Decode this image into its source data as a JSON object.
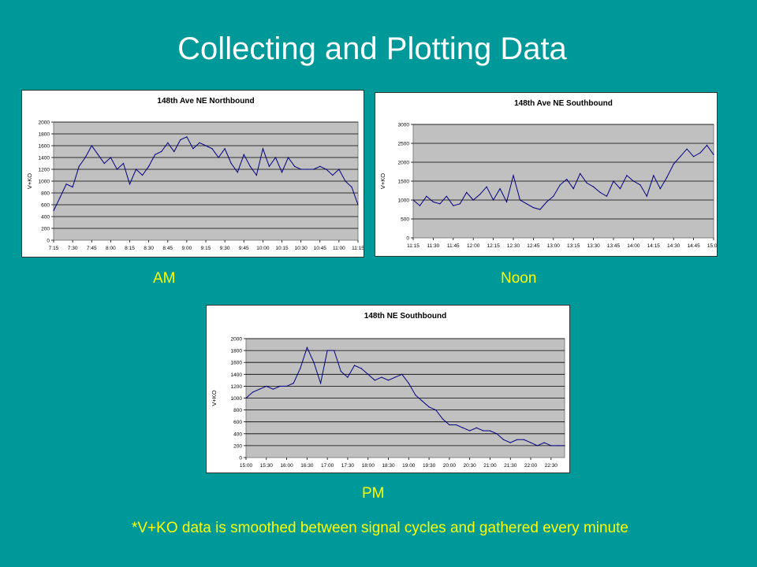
{
  "slide": {
    "title": "Collecting and Plotting Data",
    "captions": {
      "am": "AM",
      "noon": "Noon",
      "pm": "PM"
    },
    "footnote": "*V+KO data is smoothed between signal cycles and gathered every minute"
  },
  "colors": {
    "background": "#009999",
    "caption": "#ffff00",
    "title": "#ffffff",
    "plot_area": "#c0c0c0",
    "line": "#000080"
  },
  "chart_data": [
    {
      "id": "am",
      "type": "line",
      "title": "148th Ave NE Northbound",
      "ylabel": "V+KO",
      "xlabel": "",
      "grid": true,
      "ylim": [
        0,
        2000
      ],
      "yticks": [
        "0",
        "200",
        "400",
        "600",
        "800",
        "1000",
        "1200",
        "1400",
        "1600",
        "1800",
        "2000"
      ],
      "xticks": [
        "7:15",
        "7:30",
        "7:45",
        "8:00",
        "8:15",
        "8:30",
        "8:45",
        "9:00",
        "9:15",
        "9:30",
        "9:45",
        "10:00",
        "10:15",
        "10:30",
        "10:45",
        "11:00",
        "11:15"
      ],
      "x": [
        "7:15",
        "7:20",
        "7:25",
        "7:30",
        "7:35",
        "7:40",
        "7:45",
        "7:50",
        "7:55",
        "8:00",
        "8:05",
        "8:10",
        "8:15",
        "8:20",
        "8:25",
        "8:30",
        "8:35",
        "8:40",
        "8:45",
        "8:50",
        "8:55",
        "9:00",
        "9:05",
        "9:10",
        "9:15",
        "9:20",
        "9:25",
        "9:30",
        "9:35",
        "9:40",
        "9:45",
        "9:50",
        "9:55",
        "10:00",
        "10:05",
        "10:10",
        "10:15",
        "10:20",
        "10:25",
        "10:30",
        "10:35",
        "10:40",
        "10:45",
        "10:50",
        "10:55",
        "11:00",
        "11:05",
        "11:10",
        "11:15"
      ],
      "values": [
        500,
        720,
        950,
        900,
        1250,
        1400,
        1600,
        1450,
        1300,
        1400,
        1200,
        1300,
        950,
        1200,
        1100,
        1250,
        1450,
        1500,
        1650,
        1500,
        1700,
        1750,
        1550,
        1650,
        1600,
        1550,
        1400,
        1550,
        1300,
        1150,
        1450,
        1250,
        1100,
        1550,
        1250,
        1400,
        1150,
        1400,
        1250,
        1200,
        1200,
        1200,
        1250,
        1200,
        1100,
        1200,
        1000,
        900,
        600
      ]
    },
    {
      "id": "noon",
      "type": "line",
      "title": "148th Ave NE Southbound",
      "ylabel": "V+KO",
      "xlabel": "",
      "grid": true,
      "ylim": [
        0,
        3000
      ],
      "yticks": [
        "0",
        "500",
        "1000",
        "1500",
        "2000",
        "2500",
        "3000"
      ],
      "xticks": [
        "11:15",
        "11:30",
        "11:45",
        "12:00",
        "12:15",
        "12:30",
        "12:45",
        "13:00",
        "13:15",
        "13:30",
        "13:45",
        "14:00",
        "14:15",
        "14:30",
        "14:45",
        "15:00"
      ],
      "x": [
        "11:15",
        "11:20",
        "11:25",
        "11:30",
        "11:35",
        "11:40",
        "11:45",
        "11:50",
        "11:55",
        "12:00",
        "12:05",
        "12:10",
        "12:15",
        "12:20",
        "12:25",
        "12:30",
        "12:35",
        "12:40",
        "12:45",
        "12:50",
        "12:55",
        "13:00",
        "13:05",
        "13:10",
        "13:15",
        "13:20",
        "13:25",
        "13:30",
        "13:35",
        "13:40",
        "13:45",
        "13:50",
        "13:55",
        "14:00",
        "14:05",
        "14:10",
        "14:15",
        "14:20",
        "14:25",
        "14:30",
        "14:35",
        "14:40",
        "14:45",
        "14:50",
        "14:55",
        "15:00"
      ],
      "values": [
        1000,
        850,
        1100,
        950,
        900,
        1100,
        850,
        900,
        1200,
        1000,
        1150,
        1350,
        1000,
        1300,
        950,
        1650,
        1000,
        900,
        800,
        750,
        950,
        1100,
        1400,
        1550,
        1300,
        1700,
        1450,
        1350,
        1200,
        1100,
        1500,
        1300,
        1650,
        1500,
        1400,
        1100,
        1650,
        1300,
        1600,
        1950,
        2150,
        2350,
        2150,
        2250,
        2450,
        2200
      ]
    },
    {
      "id": "pm",
      "type": "line",
      "title": "148th NE Southbound",
      "ylabel": "V+KO",
      "xlabel": "",
      "grid": true,
      "ylim": [
        0,
        2000
      ],
      "yticks": [
        "0",
        "200",
        "400",
        "600",
        "800",
        "1000",
        "1200",
        "1400",
        "1600",
        "1800",
        "2000"
      ],
      "xticks": [
        "15:00",
        "15:30",
        "16:00",
        "16:30",
        "17:00",
        "17:30",
        "18:00",
        "18:30",
        "19:00",
        "19:30",
        "20:00",
        "20:30",
        "21:00",
        "21:30",
        "22:00",
        "22:30"
      ],
      "x": [
        "15:00",
        "15:10",
        "15:20",
        "15:30",
        "15:40",
        "15:50",
        "16:00",
        "16:10",
        "16:20",
        "16:30",
        "16:40",
        "16:50",
        "17:00",
        "17:10",
        "17:20",
        "17:30",
        "17:40",
        "17:50",
        "18:00",
        "18:10",
        "18:20",
        "18:30",
        "18:40",
        "18:50",
        "19:00",
        "19:10",
        "19:20",
        "19:30",
        "19:40",
        "19:50",
        "20:00",
        "20:10",
        "20:20",
        "20:30",
        "20:40",
        "20:50",
        "21:00",
        "21:10",
        "21:20",
        "21:30",
        "21:40",
        "21:50",
        "22:00",
        "22:10",
        "22:20",
        "22:30",
        "22:40",
        "22:50"
      ],
      "values": [
        1000,
        1100,
        1150,
        1200,
        1150,
        1200,
        1200,
        1250,
        1500,
        1850,
        1600,
        1250,
        1800,
        1800,
        1450,
        1350,
        1550,
        1500,
        1400,
        1300,
        1350,
        1300,
        1350,
        1400,
        1250,
        1050,
        950,
        850,
        800,
        650,
        550,
        550,
        500,
        450,
        500,
        450,
        450,
        400,
        300,
        250,
        300,
        300,
        250,
        200,
        250,
        200,
        200,
        200
      ]
    }
  ]
}
